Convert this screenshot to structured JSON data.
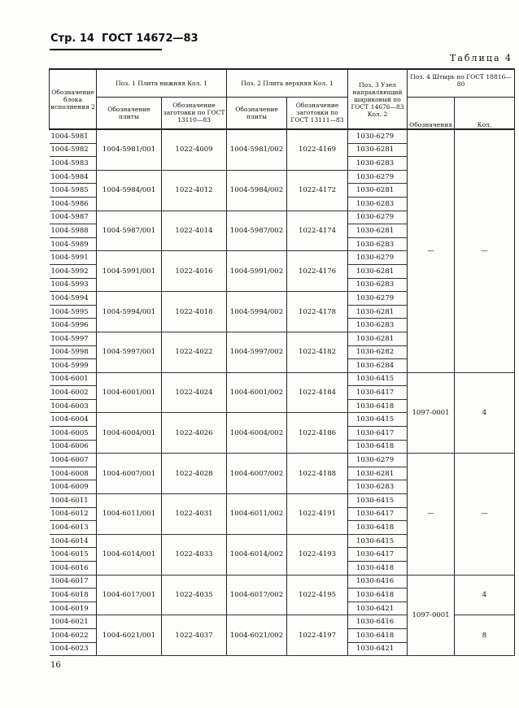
{
  "header": {
    "page": "Стр. 14",
    "standard": "ГОСТ 14672—83"
  },
  "table_title": "Таблица 4",
  "columns": {
    "block": "Обозначение блока исполнения 2",
    "pos1": "Поз. 1 Плита нижняя Кол. 1",
    "pos1_plate": "Обозначение плиты",
    "pos1_blank": "Обозначение заготовки по ГОСТ 13110—83",
    "pos2": "Поз. 2 Плита верхняя Кол. 1",
    "pos2_plate": "Обозначение плиты",
    "pos2_blank": "Обозначение заготовки по ГОСТ 13111—83",
    "pos3": "Поз. 3 Узел направляющий шариковый по ГОСТ 14676—83 Кол. 2",
    "pos4": "Поз. 4 Штырь по ГОСТ 18816—80",
    "pos4_designation": "Обозначения",
    "pos4_qty": "Кол."
  },
  "groups": [
    {
      "blocks": [
        "1004-5981",
        "1004-5982",
        "1004-5983"
      ],
      "plate1": "1004-5981/001",
      "blank1": "1022-4009",
      "plate2": "1004-5981/002",
      "blank2": "1022-4169",
      "pos3": [
        "1030-6279",
        "1030-6281",
        "1030-6283"
      ]
    },
    {
      "blocks": [
        "1004-5984",
        "1004-5985",
        "1004-5986"
      ],
      "plate1": "1004-5984/001",
      "blank1": "1022-4012",
      "plate2": "1004-5984/002",
      "blank2": "1022-4172",
      "pos3": [
        "1030-6279",
        "1030-6281",
        "1030-6283"
      ]
    },
    {
      "blocks": [
        "1004-5987",
        "1004-5988",
        "1004-5989"
      ],
      "plate1": "1004-5987/001",
      "blank1": "1022-4014",
      "plate2": "1004-5987/002",
      "blank2": "1022-4174",
      "pos3": [
        "1030-6279",
        "1030-6281",
        "1030-6283"
      ]
    },
    {
      "blocks": [
        "1004-5991",
        "1004-5992",
        "1004-5993"
      ],
      "plate1": "1004-5991/001",
      "blank1": "1022-4016",
      "plate2": "1004-5991/002",
      "blank2": "1022-4176",
      "pos3": [
        "1030-6279",
        "1030-6281",
        "1030-6283"
      ]
    },
    {
      "blocks": [
        "1004-5994",
        "1004-5995",
        "1004-5996"
      ],
      "plate1": "1004-5994/001",
      "blank1": "1022-4018",
      "plate2": "1004-5994/002",
      "blank2": "1022-4178",
      "pos3": [
        "1030-6279",
        "1030-6281",
        "1030-6283"
      ]
    },
    {
      "blocks": [
        "1004-5997",
        "1004-5998",
        "1004-5999"
      ],
      "plate1": "1004-5997/001",
      "blank1": "1022-4022",
      "plate2": "1004-5997/002",
      "blank2": "1022-4182",
      "pos3": [
        "1030-6281",
        "1030-6282",
        "1030-6284"
      ]
    },
    {
      "blocks": [
        "1004-6001",
        "1004-6002",
        "1004-6003"
      ],
      "plate1": "1004-6001/001",
      "blank1": "1022-4024",
      "plate2": "1004-6001/002",
      "blank2": "1022-4184",
      "pos3": [
        "1030-6415",
        "1030-6417",
        "1030-6418"
      ]
    },
    {
      "blocks": [
        "1004-6004",
        "1004-6005",
        "1004-6006"
      ],
      "plate1": "1004-6004/001",
      "blank1": "1022-4026",
      "plate2": "1004-6004/002",
      "blank2": "1022-4186",
      "pos3": [
        "1030-6415",
        "1030-6417",
        "1030-6418"
      ]
    },
    {
      "blocks": [
        "1004-6007",
        "1004-6008",
        "1004-6009"
      ],
      "plate1": "1004-6007/001",
      "blank1": "1022-4028",
      "plate2": "1004-6007/002",
      "blank2": "1022-4188",
      "pos3": [
        "1030-6279",
        "1030-6281",
        "1030-6283"
      ]
    },
    {
      "blocks": [
        "1004-6011",
        "1004-6012",
        "1004-6013"
      ],
      "plate1": "1004-6011/001",
      "blank1": "1022-4031",
      "plate2": "1004-6011/002",
      "blank2": "1022-4191",
      "pos3": [
        "1030-6415",
        "1030-6417",
        "1030-6418"
      ]
    },
    {
      "blocks": [
        "1004-6014",
        "1004-6015",
        "1004-6016"
      ],
      "plate1": "1004-6014/001",
      "blank1": "1022-4033",
      "plate2": "1004-6014/002",
      "blank2": "1022-4193",
      "pos3": [
        "1030-6415",
        "1030-6417",
        "1030-6418"
      ]
    },
    {
      "blocks": [
        "1004-6017",
        "1004-6018",
        "1004-6019"
      ],
      "plate1": "1004-6017/001",
      "blank1": "1022-4035",
      "plate2": "1004-6017/002",
      "blank2": "1022-4195",
      "pos3": [
        "1030-6416",
        "1030-6418",
        "1030-6421"
      ]
    },
    {
      "blocks": [
        "1004-6021",
        "1004-6022",
        "1004-6023"
      ],
      "plate1": "1004-6021/001",
      "blank1": "1022-4037",
      "plate2": "1004-6021/002",
      "blank2": "1022-4197",
      "pos3": [
        "1030-6416",
        "1030-6418",
        "1030-6421"
      ]
    }
  ],
  "pos4_designation_spans": [
    {
      "rows": 18,
      "value": "—"
    },
    {
      "rows": 6,
      "value": "1097-0001"
    },
    {
      "rows": 9,
      "value": "—"
    },
    {
      "rows": 6,
      "value": "1097-0001"
    }
  ],
  "pos4_qty_spans": [
    {
      "rows": 18,
      "value": "—"
    },
    {
      "rows": 6,
      "value": "4"
    },
    {
      "rows": 9,
      "value": "—"
    },
    {
      "rows": 3,
      "value": "4"
    },
    {
      "rows": 3,
      "value": "8"
    }
  ],
  "page_number": "16"
}
